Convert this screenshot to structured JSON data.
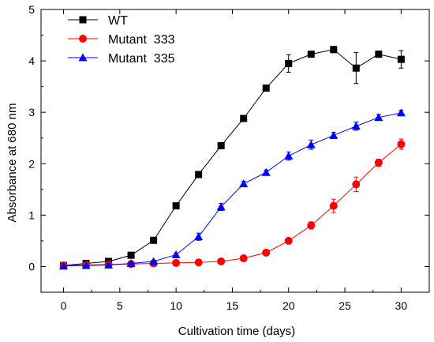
{
  "chart_data": {
    "type": "line",
    "xlabel": "Cultivation time (days)",
    "ylabel": "Absorbance at 680 nm",
    "xlim": [
      -2,
      32.5
    ],
    "ylim": [
      -0.5,
      5
    ],
    "xticks": [
      0,
      5,
      10,
      15,
      20,
      25,
      30
    ],
    "yticks": [
      0,
      1,
      2,
      3,
      4,
      5
    ],
    "legend_position": "top-left",
    "grid": false,
    "series": [
      {
        "name": "WT",
        "color": "#000000",
        "marker": "square",
        "points": [
          {
            "x": 0,
            "y": 0.02,
            "err": 0.02
          },
          {
            "x": 2,
            "y": 0.06,
            "err": 0.02
          },
          {
            "x": 4,
            "y": 0.1,
            "err": 0.02
          },
          {
            "x": 6,
            "y": 0.22,
            "err": 0.03
          },
          {
            "x": 8,
            "y": 0.51,
            "err": 0.03
          },
          {
            "x": 10,
            "y": 1.18,
            "err": 0.04
          },
          {
            "x": 12,
            "y": 1.79,
            "err": 0.04
          },
          {
            "x": 14,
            "y": 2.35,
            "err": 0.04
          },
          {
            "x": 16,
            "y": 2.88,
            "err": 0.04
          },
          {
            "x": 18,
            "y": 3.47,
            "err": 0.05
          },
          {
            "x": 20,
            "y": 3.95,
            "err": 0.17
          },
          {
            "x": 22,
            "y": 4.13,
            "err": 0.05
          },
          {
            "x": 24,
            "y": 4.22,
            "err": 0.06
          },
          {
            "x": 26,
            "y": 3.86,
            "err": 0.3
          },
          {
            "x": 28,
            "y": 4.13,
            "err": 0.06
          },
          {
            "x": 30,
            "y": 4.03,
            "err": 0.17
          }
        ]
      },
      {
        "name": "Mutant  333",
        "color": "#ff0000",
        "marker": "circle",
        "points": [
          {
            "x": 0,
            "y": 0.02,
            "err": 0.01
          },
          {
            "x": 2,
            "y": 0.03,
            "err": 0.01
          },
          {
            "x": 4,
            "y": 0.04,
            "err": 0.01
          },
          {
            "x": 6,
            "y": 0.05,
            "err": 0.01
          },
          {
            "x": 8,
            "y": 0.06,
            "err": 0.01
          },
          {
            "x": 10,
            "y": 0.07,
            "err": 0.01
          },
          {
            "x": 12,
            "y": 0.08,
            "err": 0.01
          },
          {
            "x": 14,
            "y": 0.1,
            "err": 0.01
          },
          {
            "x": 16,
            "y": 0.16,
            "err": 0.02
          },
          {
            "x": 18,
            "y": 0.27,
            "err": 0.02
          },
          {
            "x": 20,
            "y": 0.5,
            "err": 0.04
          },
          {
            "x": 22,
            "y": 0.8,
            "err": 0.07
          },
          {
            "x": 24,
            "y": 1.18,
            "err": 0.13
          },
          {
            "x": 26,
            "y": 1.6,
            "err": 0.14
          },
          {
            "x": 28,
            "y": 2.02,
            "err": 0.07
          },
          {
            "x": 30,
            "y": 2.38,
            "err": 0.1
          }
        ]
      },
      {
        "name": "Mutant  335",
        "color": "#0000ff",
        "marker": "triangle",
        "points": [
          {
            "x": 0,
            "y": 0.01,
            "err": 0.01
          },
          {
            "x": 2,
            "y": 0.02,
            "err": 0.01
          },
          {
            "x": 4,
            "y": 0.03,
            "err": 0.01
          },
          {
            "x": 6,
            "y": 0.06,
            "err": 0.02
          },
          {
            "x": 8,
            "y": 0.1,
            "err": 0.02
          },
          {
            "x": 10,
            "y": 0.23,
            "err": 0.03
          },
          {
            "x": 12,
            "y": 0.58,
            "err": 0.07
          },
          {
            "x": 14,
            "y": 1.16,
            "err": 0.07
          },
          {
            "x": 16,
            "y": 1.61,
            "err": 0.05
          },
          {
            "x": 18,
            "y": 1.83,
            "err": 0.05
          },
          {
            "x": 20,
            "y": 2.15,
            "err": 0.08
          },
          {
            "x": 22,
            "y": 2.37,
            "err": 0.09
          },
          {
            "x": 24,
            "y": 2.55,
            "err": 0.06
          },
          {
            "x": 26,
            "y": 2.73,
            "err": 0.08
          },
          {
            "x": 28,
            "y": 2.9,
            "err": 0.06
          },
          {
            "x": 30,
            "y": 2.99,
            "err": 0.05
          }
        ]
      }
    ]
  }
}
